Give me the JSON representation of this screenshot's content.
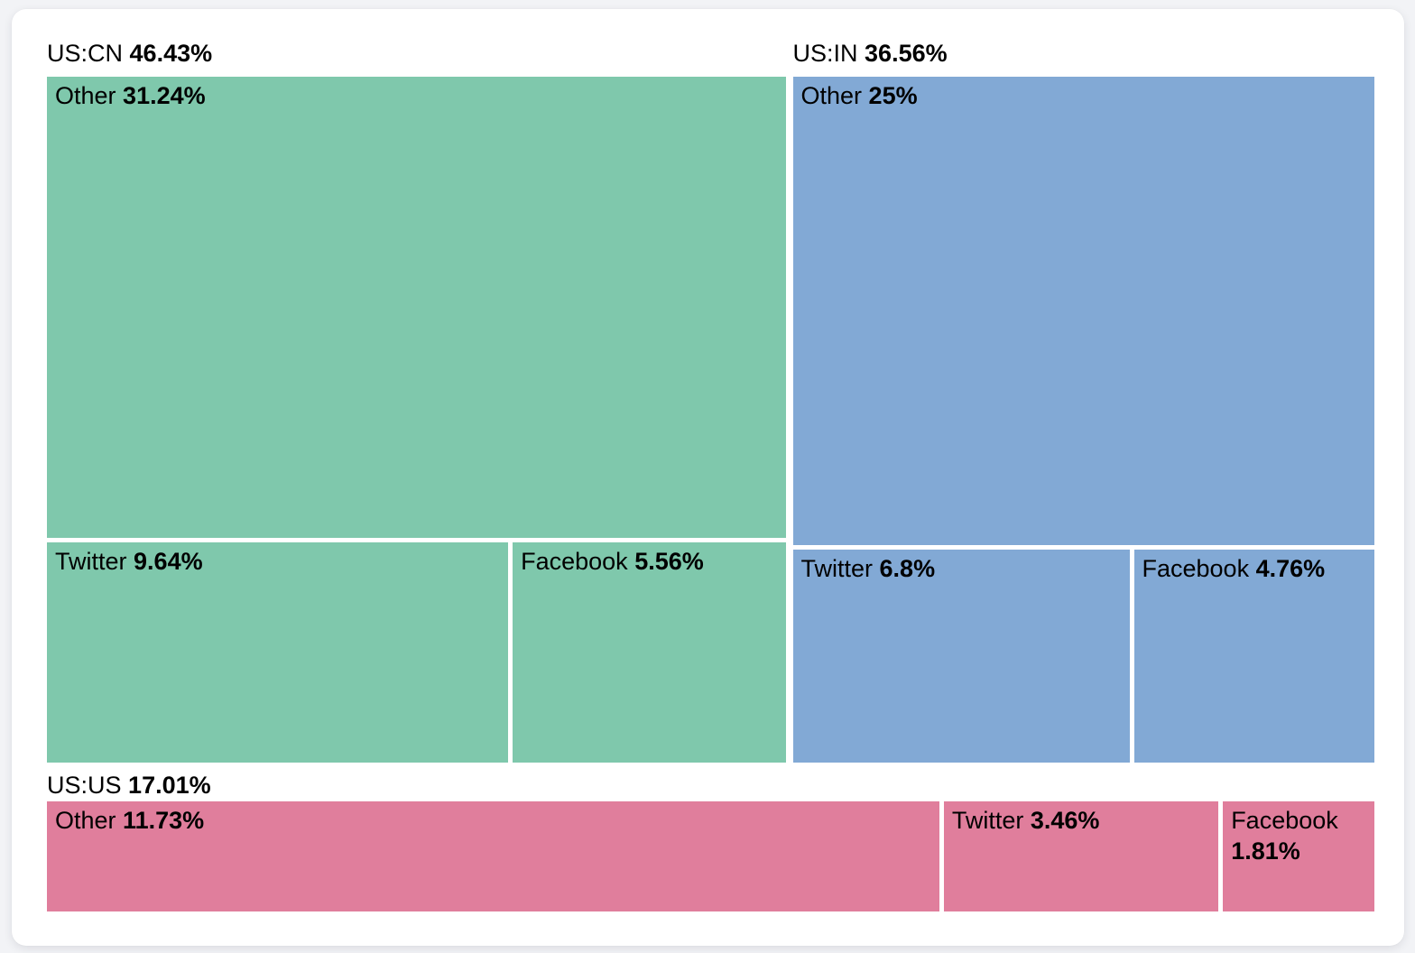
{
  "page": {
    "background_color": "#f2f3f6",
    "card_background_color": "#ffffff"
  },
  "chart_data": {
    "type": "treemap",
    "legend_position": "none",
    "title": "",
    "groups": [
      {
        "label": "US:CN",
        "value": 46.43,
        "value_label": "46.43%",
        "color": "#7FC8AC",
        "bottom_row_value": 15.2,
        "children": [
          {
            "label": "Other",
            "value": 31.24,
            "value_label": "31.24%"
          },
          {
            "label": "Twitter",
            "value": 9.64,
            "value_label": "9.64%"
          },
          {
            "label": "Facebook",
            "value": 5.56,
            "value_label": "5.56%"
          }
        ]
      },
      {
        "label": "US:IN",
        "value": 36.56,
        "value_label": "36.56%",
        "color": "#82A9D5",
        "bottom_row_value": 11.56,
        "children": [
          {
            "label": "Other",
            "value": 25,
            "value_label": "25%"
          },
          {
            "label": "Twitter",
            "value": 6.8,
            "value_label": "6.8%"
          },
          {
            "label": "Facebook",
            "value": 4.76,
            "value_label": "4.76%"
          }
        ]
      },
      {
        "label": "US:US",
        "value": 17.01,
        "value_label": "17.01%",
        "color": "#E07E9C",
        "children": [
          {
            "label": "Other",
            "value": 11.73,
            "value_label": "11.73%"
          },
          {
            "label": "Twitter",
            "value": 3.46,
            "value_label": "3.46%"
          },
          {
            "label": "Facebook",
            "value": 1.81,
            "value_label": "1.81%"
          }
        ]
      }
    ]
  }
}
